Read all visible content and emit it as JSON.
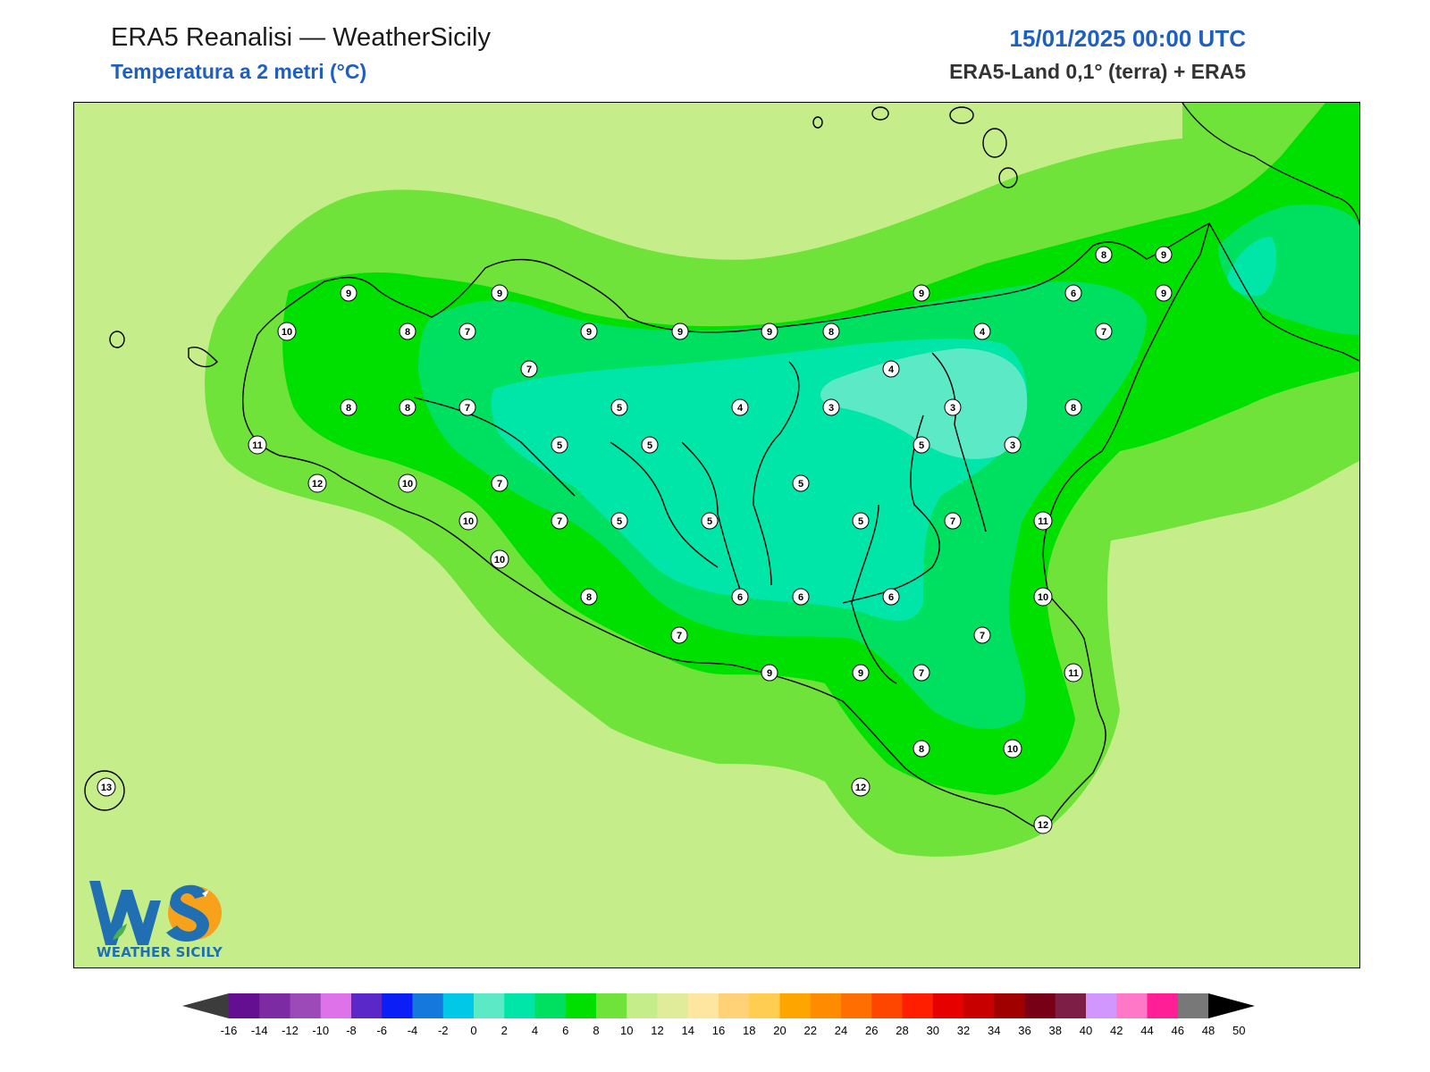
{
  "header": {
    "title": "ERA5 Reanalisi — WeatherSicily",
    "subtitle": "Temperatura a 2 metri (°C)",
    "datetime": "15/01/2025 00:00 UTC",
    "source": "ERA5-Land 0,1° (terra) + ERA5"
  },
  "logo": {
    "text": "WEATHER SICILY",
    "initials": "WS"
  },
  "colors": {
    "sea_background": "#c5ee8a",
    "band_12": "#6fe33a",
    "band_10": "#00e000",
    "band_8": "#00e060",
    "band_6": "#00e6a8",
    "band_4": "#5ceac6",
    "title_blue": "#1f5fbf"
  },
  "stations": [
    {
      "v": "9"
    },
    {
      "v": "9"
    },
    {
      "v": "10"
    },
    {
      "v": "8"
    },
    {
      "v": "7"
    },
    {
      "v": "9"
    },
    {
      "v": "9"
    },
    {
      "v": "9"
    },
    {
      "v": "8"
    },
    {
      "v": "9"
    },
    {
      "v": "6"
    },
    {
      "v": "8"
    },
    {
      "v": "9"
    },
    {
      "v": "9"
    },
    {
      "v": "7"
    },
    {
      "v": "4"
    },
    {
      "v": "7"
    },
    {
      "v": "4"
    },
    {
      "v": "8"
    },
    {
      "v": "8"
    },
    {
      "v": "7"
    },
    {
      "v": "5"
    },
    {
      "v": "4"
    },
    {
      "v": "3"
    },
    {
      "v": "3"
    },
    {
      "v": "8"
    },
    {
      "v": "11"
    },
    {
      "v": "5"
    },
    {
      "v": "5"
    },
    {
      "v": "5"
    },
    {
      "v": "3"
    },
    {
      "v": "12"
    },
    {
      "v": "10"
    },
    {
      "v": "7"
    },
    {
      "v": "5"
    },
    {
      "v": "10"
    },
    {
      "v": "7"
    },
    {
      "v": "5"
    },
    {
      "v": "5"
    },
    {
      "v": "5"
    },
    {
      "v": "7"
    },
    {
      "v": "11"
    },
    {
      "v": "10"
    },
    {
      "v": "8"
    },
    {
      "v": "6"
    },
    {
      "v": "6"
    },
    {
      "v": "6"
    },
    {
      "v": "10"
    },
    {
      "v": "7"
    },
    {
      "v": "7"
    },
    {
      "v": "9"
    },
    {
      "v": "9"
    },
    {
      "v": "7"
    },
    {
      "v": "11"
    },
    {
      "v": "8"
    },
    {
      "v": "10"
    },
    {
      "v": "13"
    },
    {
      "v": "12"
    },
    {
      "v": "12"
    }
  ],
  "colorbar": {
    "ticks": [
      "-16",
      "-14",
      "-12",
      "-10",
      "-8",
      "-6",
      "-4",
      "-2",
      "0",
      "2",
      "4",
      "6",
      "8",
      "10",
      "12",
      "14",
      "16",
      "18",
      "20",
      "22",
      "24",
      "26",
      "28",
      "30",
      "32",
      "34",
      "36",
      "38",
      "40",
      "42",
      "44",
      "46",
      "48",
      "50"
    ],
    "colors": [
      "#46005f",
      "#640f91",
      "#7d2ba3",
      "#9b4ab8",
      "#de72e8",
      "#5a28c8",
      "#0a1ef5",
      "#1478dc",
      "#00c8e6",
      "#5ceac6",
      "#00e6a8",
      "#00e060",
      "#00e000",
      "#6fe33a",
      "#c5ee8a",
      "#e1ec9a",
      "#ffe6a0",
      "#ffd278",
      "#ffcd50",
      "#ffa500",
      "#ff8c00",
      "#ff6e00",
      "#ff4600",
      "#ff1e00",
      "#e60000",
      "#c80000",
      "#a00000",
      "#780016",
      "#7d1e46",
      "#d296ff",
      "#ff78c8",
      "#ff1e96",
      "#787878",
      "#3c3c3c"
    ]
  }
}
